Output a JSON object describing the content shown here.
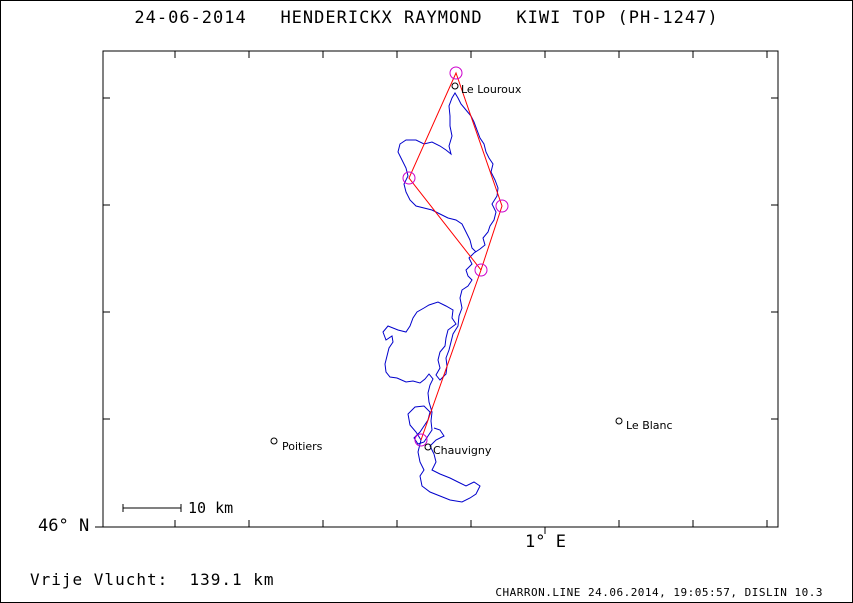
{
  "title": "24-06-2014   HENDERICKX RAYMOND   KIWI TOP (PH-1247)",
  "axis": {
    "lat_label": "46° N",
    "lon_label": "1° E"
  },
  "scale_bar_label": "10 km",
  "places": [
    {
      "name": "Le Louroux"
    },
    {
      "name": "Poitiers"
    },
    {
      "name": "Chauvigny"
    },
    {
      "name": "Le Blanc"
    }
  ],
  "footer": {
    "distance": "Vrije Vlucht:  139.1 km",
    "credits": "CHARRON.LINE 24.06.2014, 19:05:57, DISLIN 10.3"
  },
  "colors": {
    "track": "#0000cc",
    "task": "#ff0000",
    "turnpoint": "#cc00cc",
    "frame": "#000000"
  },
  "turnpoints": 5
}
